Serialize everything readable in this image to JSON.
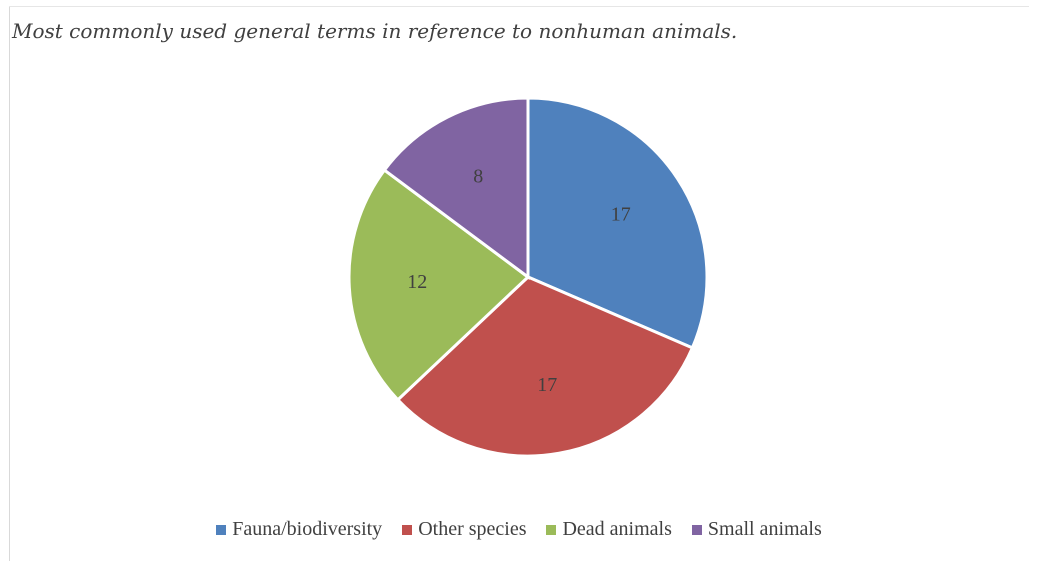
{
  "chart_data": {
    "type": "pie",
    "title": "Most commonly used general terms in reference to nonhuman animals.",
    "categories": [
      "Fauna/biodiversity",
      "Other species",
      "Dead animals",
      "Small animals"
    ],
    "values": [
      17,
      17,
      12,
      8
    ],
    "colors": [
      "#4f81bd",
      "#c0504d",
      "#9bbb59",
      "#8064a2"
    ],
    "legend": "bottom",
    "start_angle": "12 o'clock",
    "direction": "clockwise"
  }
}
